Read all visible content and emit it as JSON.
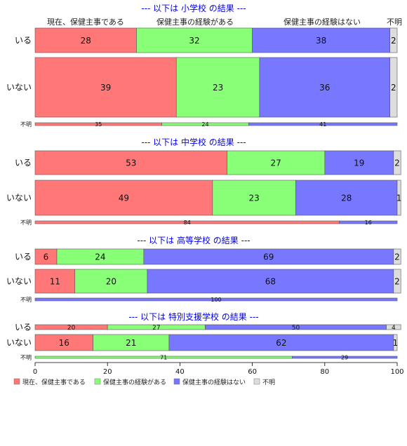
{
  "chart_data": {
    "type": "bar",
    "orientation": "horizontal-stacked-percent",
    "xlim": [
      0,
      100
    ],
    "xticks": [
      0,
      20,
      40,
      60,
      80,
      100
    ],
    "column_headers": [
      "現在、保健主事である",
      "保健主事の経験がある",
      "保健主事の経験はない",
      "不明"
    ],
    "series_names": [
      "現在、保健主事である",
      "保健主事の経験がある",
      "保健主事の経験はない",
      "不明"
    ],
    "colors": [
      "#ff7777",
      "#88ff77",
      "#7777ff",
      "#dddddd"
    ],
    "panels": [
      {
        "title": "--- 以下は 小学校 の結果 ---",
        "rows": [
          {
            "label": "いる",
            "size": "large",
            "values": [
              28,
              32,
              38,
              2
            ]
          },
          {
            "label": "いない",
            "size": "large",
            "values": [
              39,
              23,
              36,
              2
            ]
          },
          {
            "label": "不明",
            "size": "thin",
            "values": [
              35,
              24,
              41,
              0
            ]
          }
        ]
      },
      {
        "title": "--- 以下は 中学校 の結果 ---",
        "rows": [
          {
            "label": "いる",
            "size": "large",
            "values": [
              53,
              27,
              19,
              2
            ]
          },
          {
            "label": "いない",
            "size": "large",
            "values": [
              49,
              23,
              28,
              1
            ]
          },
          {
            "label": "不明",
            "size": "thin",
            "values": [
              84,
              0,
              16,
              0
            ]
          }
        ]
      },
      {
        "title": "--- 以下は 高等学校 の結果 ---",
        "rows": [
          {
            "label": "いる",
            "size": "medium",
            "values": [
              6,
              24,
              69,
              2
            ]
          },
          {
            "label": "いない",
            "size": "large",
            "values": [
              11,
              20,
              68,
              2
            ]
          },
          {
            "label": "不明",
            "size": "thin",
            "values": [
              0,
              0,
              100,
              0
            ]
          }
        ]
      },
      {
        "title": "--- 以下は 特別支援学校 の結果 ---",
        "rows": [
          {
            "label": "いる",
            "size": "small",
            "values": [
              20,
              27,
              50,
              4
            ]
          },
          {
            "label": "いない",
            "size": "medium",
            "values": [
              16,
              21,
              62,
              1
            ]
          },
          {
            "label": "不明",
            "size": "thin",
            "values": [
              0,
              71,
              29,
              0
            ]
          }
        ]
      }
    ],
    "legend": {
      "placement": "bottom-left",
      "entries": [
        "現在、保健主事である",
        "保健主事の経験がある",
        "保健主事の経験はない",
        "不明"
      ]
    }
  }
}
